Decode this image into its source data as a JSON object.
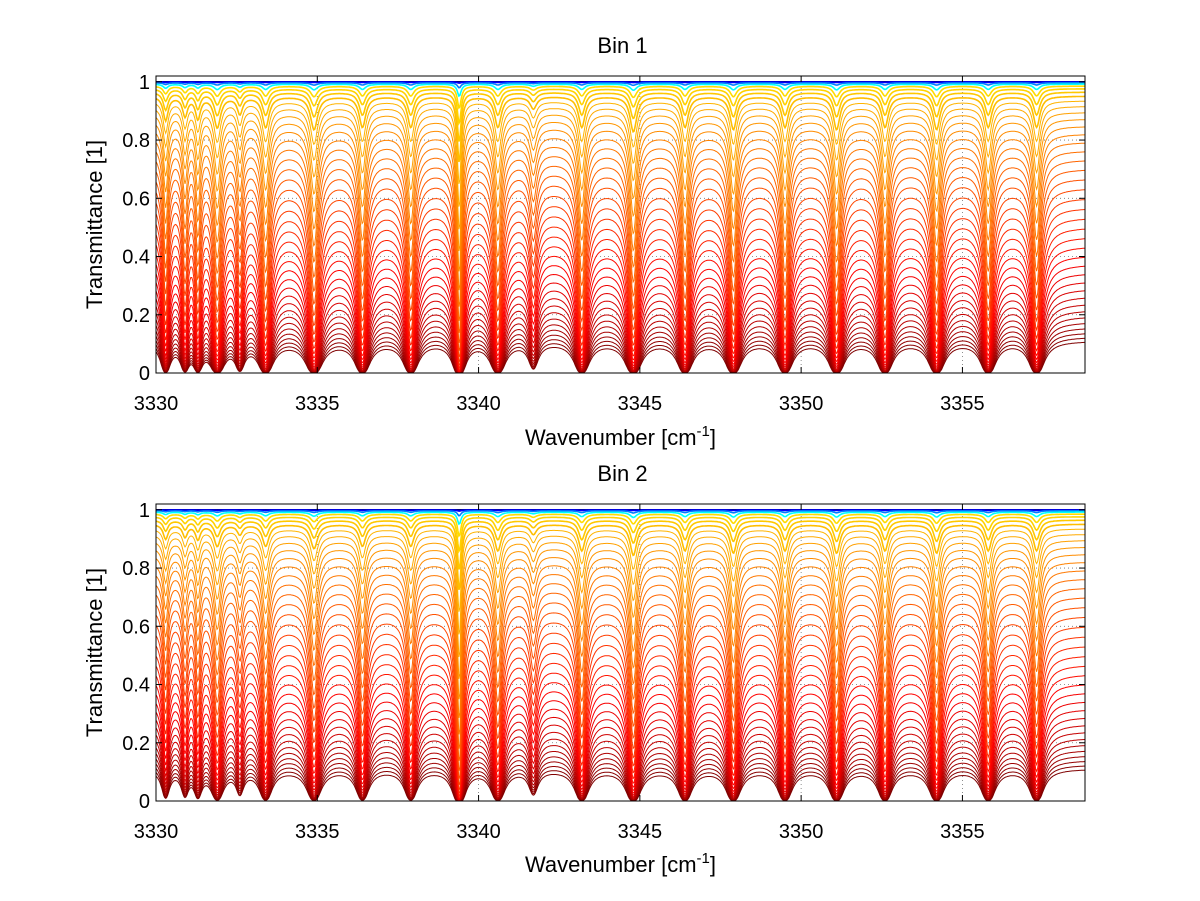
{
  "chart_data": [
    {
      "type": "line",
      "title": "Bin 1",
      "xlabel": "Wavenumber [cm",
      "xlabel_sup": "-1",
      "xlabel_end": "]",
      "ylabel": "Transmittance [1]",
      "xlim": [
        3330,
        3358.8
      ],
      "ylim": [
        0,
        1.02
      ],
      "xticks": [
        3330,
        3335,
        3340,
        3345,
        3350,
        3355
      ],
      "yticks": [
        0,
        0.2,
        0.4,
        0.6,
        0.8,
        1
      ],
      "ytick_labels": [
        "0",
        "0.2",
        "0.4",
        "0.6",
        "0.8",
        "1"
      ],
      "grid": "dotted",
      "colormap": [
        "#00007f",
        "#0000ff",
        "#007fff",
        "#00ffff",
        "#7fff7f",
        "#ffff00",
        "#ff7f00",
        "#ff0000",
        "#7f0000"
      ],
      "series_count": 40,
      "absorption_lines": [
        {
          "center": 3330.3,
          "strength": 1.0,
          "width": 0.09
        },
        {
          "center": 3330.9,
          "strength": 0.8,
          "width": 0.09
        },
        {
          "center": 3331.3,
          "strength": 0.9,
          "width": 0.09
        },
        {
          "center": 3331.9,
          "strength": 1.3,
          "width": 0.12
        },
        {
          "center": 3332.6,
          "strength": 0.7,
          "width": 0.1
        },
        {
          "center": 3333.4,
          "strength": 1.3,
          "width": 0.12
        },
        {
          "center": 3334.9,
          "strength": 1.4,
          "width": 0.13
        },
        {
          "center": 3336.4,
          "strength": 1.3,
          "width": 0.12
        },
        {
          "center": 3337.9,
          "strength": 1.3,
          "width": 0.12
        },
        {
          "center": 3339.4,
          "strength": 3.0,
          "width": 0.07
        },
        {
          "center": 3340.6,
          "strength": 1.3,
          "width": 0.12
        },
        {
          "center": 3341.7,
          "strength": 0.5,
          "width": 0.12
        },
        {
          "center": 3343.2,
          "strength": 1.3,
          "width": 0.12
        },
        {
          "center": 3344.8,
          "strength": 1.5,
          "width": 0.12
        },
        {
          "center": 3346.4,
          "strength": 1.3,
          "width": 0.12
        },
        {
          "center": 3347.9,
          "strength": 1.4,
          "width": 0.12
        },
        {
          "center": 3349.5,
          "strength": 1.3,
          "width": 0.12
        },
        {
          "center": 3351.1,
          "strength": 1.4,
          "width": 0.12
        },
        {
          "center": 3352.6,
          "strength": 1.3,
          "width": 0.12
        },
        {
          "center": 3354.2,
          "strength": 1.4,
          "width": 0.12
        },
        {
          "center": 3355.8,
          "strength": 1.3,
          "width": 0.12
        },
        {
          "center": 3357.3,
          "strength": 1.3,
          "width": 0.12
        }
      ]
    },
    {
      "type": "line",
      "title": "Bin 2",
      "xlabel": "Wavenumber [cm",
      "xlabel_sup": "-1",
      "xlabel_end": "]",
      "ylabel": "Transmittance [1]",
      "xlim": [
        3330,
        3358.8
      ],
      "ylim": [
        0,
        1.02
      ],
      "xticks": [
        3330,
        3335,
        3340,
        3345,
        3350,
        3355
      ],
      "yticks": [
        0,
        0.2,
        0.4,
        0.6,
        0.8,
        1
      ],
      "ytick_labels": [
        "0",
        "0.2",
        "0.4",
        "0.6",
        "0.8",
        "1"
      ],
      "grid": "dotted",
      "colormap": [
        "#00007f",
        "#0000ff",
        "#007fff",
        "#00ffff",
        "#7fff7f",
        "#ffff00",
        "#ff7f00",
        "#ff0000",
        "#7f0000"
      ],
      "series_count": 40,
      "absorption_lines": [
        {
          "center": 3330.3,
          "strength": 0.6,
          "width": 0.09
        },
        {
          "center": 3330.9,
          "strength": 0.5,
          "width": 0.09
        },
        {
          "center": 3331.3,
          "strength": 0.6,
          "width": 0.09
        },
        {
          "center": 3331.9,
          "strength": 0.9,
          "width": 0.12
        },
        {
          "center": 3332.6,
          "strength": 0.4,
          "width": 0.1
        },
        {
          "center": 3333.4,
          "strength": 0.9,
          "width": 0.12
        },
        {
          "center": 3334.9,
          "strength": 1.0,
          "width": 0.13
        },
        {
          "center": 3336.4,
          "strength": 0.9,
          "width": 0.12
        },
        {
          "center": 3337.9,
          "strength": 0.9,
          "width": 0.12
        },
        {
          "center": 3339.4,
          "strength": 3.0,
          "width": 0.07
        },
        {
          "center": 3340.6,
          "strength": 1.1,
          "width": 0.12
        },
        {
          "center": 3341.7,
          "strength": 0.4,
          "width": 0.12
        },
        {
          "center": 3343.2,
          "strength": 1.1,
          "width": 0.12
        },
        {
          "center": 3344.8,
          "strength": 1.3,
          "width": 0.12
        },
        {
          "center": 3346.4,
          "strength": 1.1,
          "width": 0.12
        },
        {
          "center": 3347.9,
          "strength": 1.2,
          "width": 0.12
        },
        {
          "center": 3349.5,
          "strength": 1.1,
          "width": 0.12
        },
        {
          "center": 3351.1,
          "strength": 1.2,
          "width": 0.12
        },
        {
          "center": 3352.6,
          "strength": 1.1,
          "width": 0.12
        },
        {
          "center": 3354.2,
          "strength": 1.2,
          "width": 0.12
        },
        {
          "center": 3355.8,
          "strength": 1.1,
          "width": 0.12
        },
        {
          "center": 3357.3,
          "strength": 1.1,
          "width": 0.12
        }
      ]
    }
  ]
}
